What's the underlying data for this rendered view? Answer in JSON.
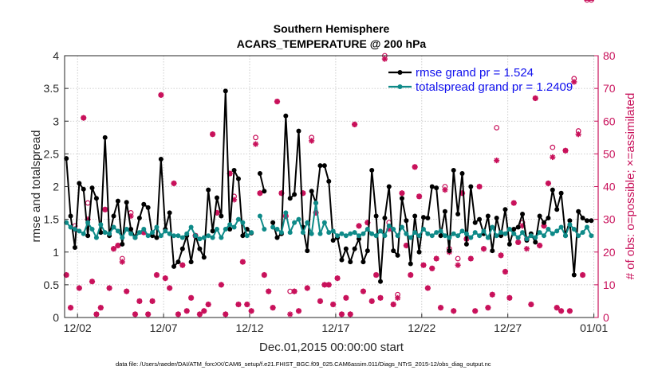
{
  "chart_data": {
    "type": "line",
    "title": "Southern Hemisphere",
    "subtitle": "ACARS_TEMPERATURE @ 200 hPa",
    "xlabel": "Dec.01,2015 00:00:00 start",
    "ylabel_left": "rmse and totalspread",
    "ylabel_right": "# of obs: o=possible; ×=assimilated",
    "x_ticks": [
      {
        "day": 1,
        "label": "12/02"
      },
      {
        "day": 6,
        "label": "12/07"
      },
      {
        "day": 11,
        "label": "12/12"
      },
      {
        "day": 16,
        "label": "12/17"
      },
      {
        "day": 21,
        "label": "12/22"
      },
      {
        "day": 26,
        "label": "12/27"
      },
      {
        "day": 31,
        "label": "01/01"
      }
    ],
    "xlim": [
      0.25,
      31.25
    ],
    "y_left_lim": [
      0,
      4
    ],
    "y_left_ticks": [
      "0",
      "0.5",
      "1",
      "1.5",
      "2",
      "2.5",
      "3",
      "3.5",
      "4"
    ],
    "y_right_lim": [
      0,
      80
    ],
    "y_right_ticks": [
      "0",
      "10",
      "20",
      "30",
      "40",
      "50",
      "60",
      "70",
      "80"
    ],
    "legend": [
      {
        "label": "rmse grand pr = 1.524",
        "color": "#000000"
      },
      {
        "label": "totalspread grand pr = 1.2409",
        "color": "#0e8a88"
      }
    ],
    "footer": "data file: /Users/raeder/DAI/ATM_forcXX/CAM6_setup/f.e21.FHIST_BGC.f09_025.CAM6assim.011/Diags_NTrS_2015-12/obs_diag_output.nc",
    "series": [
      {
        "name": "rmse",
        "color": "#000000",
        "x": [
          0.35,
          0.6,
          0.85,
          1.1,
          1.35,
          1.6,
          1.85,
          2.1,
          2.35,
          2.6,
          2.85,
          3.1,
          3.35,
          3.6,
          3.85,
          4.1,
          4.35,
          4.6,
          4.85,
          5.1,
          5.35,
          5.6,
          5.85,
          6.1,
          6.35,
          6.6,
          6.85,
          7.1,
          7.35,
          7.6,
          7.85,
          8.1,
          8.35,
          8.6,
          8.85,
          9.1,
          9.35,
          9.6,
          9.85,
          10.1,
          10.35,
          10.6,
          10.85,
          11.1,
          11.6,
          11.85,
          12.35,
          12.6,
          12.85,
          13.1,
          13.35,
          13.6,
          13.85,
          14.1,
          14.35,
          14.6,
          14.85,
          15.1,
          15.35,
          15.6,
          15.85,
          16.1,
          16.35,
          16.6,
          16.85,
          17.1,
          17.35,
          17.6,
          17.85,
          18.1,
          18.35,
          18.6,
          18.85,
          19.1,
          19.35,
          19.6,
          19.85,
          20.1,
          20.35,
          20.6,
          20.85,
          21.1,
          21.35,
          21.6,
          21.85,
          22.1,
          22.35,
          22.6,
          22.85,
          23.1,
          23.35,
          23.6,
          23.85,
          24.1,
          24.35,
          24.6,
          24.85,
          25.1,
          25.35,
          25.6,
          25.85,
          26.1,
          26.35,
          26.6,
          26.85,
          27.1,
          27.35,
          27.6,
          27.85,
          28.1,
          28.35,
          28.6,
          28.85,
          29.1,
          29.35,
          29.6,
          29.85,
          30.1,
          30.35,
          30.6,
          30.85
        ],
        "values": [
          2.43,
          1.55,
          1.07,
          2.05,
          1.96,
          1.25,
          1.98,
          1.82,
          1.3,
          2.75,
          1.25,
          1.55,
          1.78,
          1.12,
          1.76,
          1.35,
          1.22,
          1.52,
          1.73,
          1.68,
          1.25,
          1.22,
          2.42,
          1.35,
          1.6,
          0.78,
          0.85,
          1.05,
          1.25,
          0.85,
          1.25,
          1.05,
          0.92,
          1.95,
          1.32,
          1.83,
          1.55,
          3.46,
          1.35,
          2.25,
          2.12,
          1.25,
          1.35,
          1.29,
          2.2,
          1.93,
          1.45,
          1.22,
          1.28,
          3.08,
          1.82,
          1.88,
          2.85,
          1.38,
          1.02,
          1.93,
          1.75,
          2.32,
          2.32,
          2.08,
          1.18,
          1.22,
          0.88,
          1.05,
          0.85,
          1.05,
          1.2,
          0.85,
          1.02,
          2.25,
          1.55,
          0.55,
          1.52,
          2.0,
          1.02,
          0.95,
          1.82,
          1.48,
          0.82,
          1.55,
          1.0,
          1.53,
          1.52,
          2.0,
          1.98,
          1.25,
          1.62,
          1.02,
          2.25,
          1.58,
          2.2,
          1.12,
          2.0,
          1.45,
          1.5,
          1.28,
          1.55,
          1.02,
          1.52,
          1.25,
          1.65,
          1.12,
          1.35,
          1.38,
          1.58,
          1.18,
          1.28,
          1.15,
          1.55,
          1.45,
          1.52,
          1.95,
          1.65,
          1.9,
          1.25,
          1.48,
          0.65,
          1.62,
          1.52,
          1.48,
          1.48
        ]
      },
      {
        "name": "totalspread",
        "color": "#0e8a88",
        "x": [
          0.35,
          0.6,
          0.85,
          1.1,
          1.35,
          1.6,
          1.85,
          2.1,
          2.35,
          2.6,
          2.85,
          3.1,
          3.35,
          3.6,
          3.85,
          4.1,
          4.35,
          4.6,
          4.85,
          5.1,
          5.35,
          5.6,
          5.85,
          6.1,
          6.35,
          6.6,
          6.85,
          7.1,
          7.35,
          7.6,
          7.85,
          8.1,
          8.35,
          8.6,
          8.85,
          9.1,
          9.35,
          9.6,
          9.85,
          10.1,
          10.35,
          10.6,
          10.85,
          11.1,
          11.6,
          11.85,
          12.35,
          12.6,
          12.85,
          13.1,
          13.35,
          13.6,
          13.85,
          14.1,
          14.35,
          14.6,
          14.85,
          15.1,
          15.35,
          15.6,
          15.85,
          16.1,
          16.35,
          16.6,
          16.85,
          17.1,
          17.35,
          17.6,
          17.85,
          18.1,
          18.35,
          18.6,
          18.85,
          19.1,
          19.35,
          19.6,
          19.85,
          20.1,
          20.35,
          20.6,
          20.85,
          21.1,
          21.35,
          21.6,
          21.85,
          22.1,
          22.35,
          22.6,
          22.85,
          23.1,
          23.35,
          23.6,
          23.85,
          24.1,
          24.35,
          24.6,
          24.85,
          25.1,
          25.35,
          25.6,
          25.85,
          26.1,
          26.35,
          26.6,
          26.85,
          27.1,
          27.35,
          27.6,
          27.85,
          28.1,
          28.35,
          28.6,
          28.85,
          29.1,
          29.35,
          29.6,
          29.85,
          30.1,
          30.35,
          30.6,
          30.85
        ],
        "values": [
          1.45,
          1.38,
          1.35,
          1.32,
          1.28,
          1.45,
          1.35,
          1.22,
          1.42,
          1.3,
          1.28,
          1.38,
          1.32,
          1.22,
          1.35,
          1.28,
          1.22,
          1.3,
          1.35,
          1.25,
          1.3,
          1.38,
          1.25,
          1.32,
          1.28,
          1.25,
          1.25,
          1.22,
          1.28,
          1.38,
          1.25,
          1.2,
          1.22,
          1.25,
          1.22,
          1.35,
          1.22,
          1.35,
          1.42,
          1.38,
          1.5,
          1.45,
          1.25,
          1.3,
          1.55,
          1.35,
          1.38,
          1.35,
          1.3,
          1.6,
          1.3,
          1.45,
          1.5,
          1.3,
          1.45,
          1.28,
          1.75,
          1.28,
          1.45,
          1.3,
          1.32,
          1.25,
          1.28,
          1.25,
          1.28,
          1.3,
          1.25,
          1.28,
          1.35,
          1.28,
          1.25,
          1.32,
          1.25,
          1.4,
          1.35,
          1.25,
          1.38,
          1.28,
          1.22,
          1.3,
          1.25,
          1.35,
          1.28,
          1.25,
          1.3,
          1.32,
          1.25,
          1.22,
          1.28,
          1.25,
          1.32,
          1.28,
          1.22,
          1.3,
          1.25,
          1.32,
          1.22,
          1.38,
          1.25,
          1.3,
          1.28,
          1.35,
          1.28,
          1.22,
          1.3,
          1.2,
          1.25,
          1.22,
          1.3,
          1.25,
          1.35,
          1.28,
          1.32,
          1.38,
          1.25,
          1.42,
          1.35,
          1.25,
          1.3,
          1.38,
          1.25
        ]
      }
    ],
    "obs_count": {
      "color": "#c8105a",
      "x": [
        0.35,
        0.6,
        0.85,
        1.1,
        1.35,
        1.6,
        1.85,
        2.1,
        2.35,
        2.6,
        2.85,
        3.1,
        3.35,
        3.6,
        3.85,
        4.1,
        4.35,
        4.6,
        4.85,
        5.1,
        5.35,
        5.6,
        5.85,
        6.1,
        6.35,
        6.6,
        6.85,
        7.1,
        7.35,
        7.6,
        7.85,
        8.1,
        8.35,
        8.6,
        8.85,
        9.1,
        9.35,
        9.6,
        9.85,
        10.1,
        10.35,
        10.6,
        10.85,
        11.1,
        11.35,
        11.6,
        11.85,
        12.1,
        12.35,
        12.6,
        12.85,
        13.1,
        13.35,
        13.6,
        13.85,
        14.1,
        14.35,
        14.6,
        14.85,
        15.1,
        15.35,
        15.6,
        15.85,
        16.1,
        16.35,
        16.6,
        16.85,
        17.1,
        17.35,
        17.6,
        17.85,
        18.1,
        18.35,
        18.6,
        18.85,
        19.1,
        19.35,
        19.6,
        19.85,
        20.1,
        20.35,
        20.6,
        20.85,
        21.1,
        21.35,
        21.6,
        21.85,
        22.1,
        22.35,
        22.6,
        22.85,
        23.1,
        23.35,
        23.6,
        23.85,
        24.1,
        24.35,
        24.6,
        24.85,
        25.1,
        25.35,
        25.6,
        25.85,
        26.1,
        26.35,
        26.6,
        26.85,
        27.1,
        27.35,
        27.6,
        27.85,
        28.1,
        28.35,
        28.6,
        28.85,
        29.1,
        29.35,
        29.6,
        29.85,
        30.1,
        30.35,
        30.6,
        30.85
      ],
      "assimilated": [
        13,
        3,
        27,
        9,
        61,
        30,
        11,
        1,
        3,
        33,
        9,
        21,
        22,
        17,
        8,
        31,
        1,
        5,
        26,
        1,
        5,
        13,
        68,
        12,
        9,
        41,
        1,
        16,
        2,
        6,
        25,
        1,
        2,
        4,
        56,
        32,
        10,
        1,
        44,
        36,
        4,
        17,
        4,
        2,
        53,
        38,
        13,
        8,
        3,
        66,
        38,
        31,
        1,
        8,
        2,
        38,
        9,
        54,
        32,
        5,
        10,
        10,
        4,
        12,
        1,
        6,
        1,
        59,
        28,
        8,
        29,
        5,
        13,
        6,
        79,
        27,
        4,
        6,
        38,
        22,
        13,
        46,
        37,
        16,
        9,
        15,
        18,
        3,
        39,
        20,
        2,
        16,
        38,
        24,
        18,
        2,
        40,
        21,
        3,
        7,
        48,
        19,
        14,
        6,
        35,
        23,
        28,
        21,
        4,
        67,
        22,
        28,
        41,
        49,
        3,
        2,
        51,
        2,
        72,
        56,
        13
      ],
      "possible": [
        13,
        3,
        28,
        9,
        61,
        35,
        11,
        1,
        3,
        33,
        9,
        21,
        22,
        18,
        8,
        32,
        1,
        5,
        26,
        1,
        5,
        13,
        68,
        12,
        9,
        41,
        1,
        16,
        2,
        6,
        25,
        1,
        2,
        4,
        56,
        32,
        10,
        1,
        44,
        37,
        4,
        17,
        4,
        2,
        55,
        38,
        13,
        8,
        3,
        66,
        38,
        31,
        8,
        8,
        2,
        38,
        9,
        55,
        32,
        5,
        10,
        10,
        4,
        12,
        1,
        6,
        1,
        59,
        28,
        8,
        29,
        5,
        13,
        6,
        80,
        29,
        4,
        7,
        38,
        22,
        13,
        46,
        37,
        16,
        9,
        15,
        18,
        3,
        40,
        21,
        2,
        18,
        38,
        24,
        18,
        2,
        40,
        21,
        3,
        7,
        58,
        19,
        14,
        6,
        35,
        23,
        29,
        24,
        4,
        67,
        22,
        28,
        41,
        52,
        3,
        2,
        51,
        2,
        73,
        57,
        13
      ]
    }
  }
}
